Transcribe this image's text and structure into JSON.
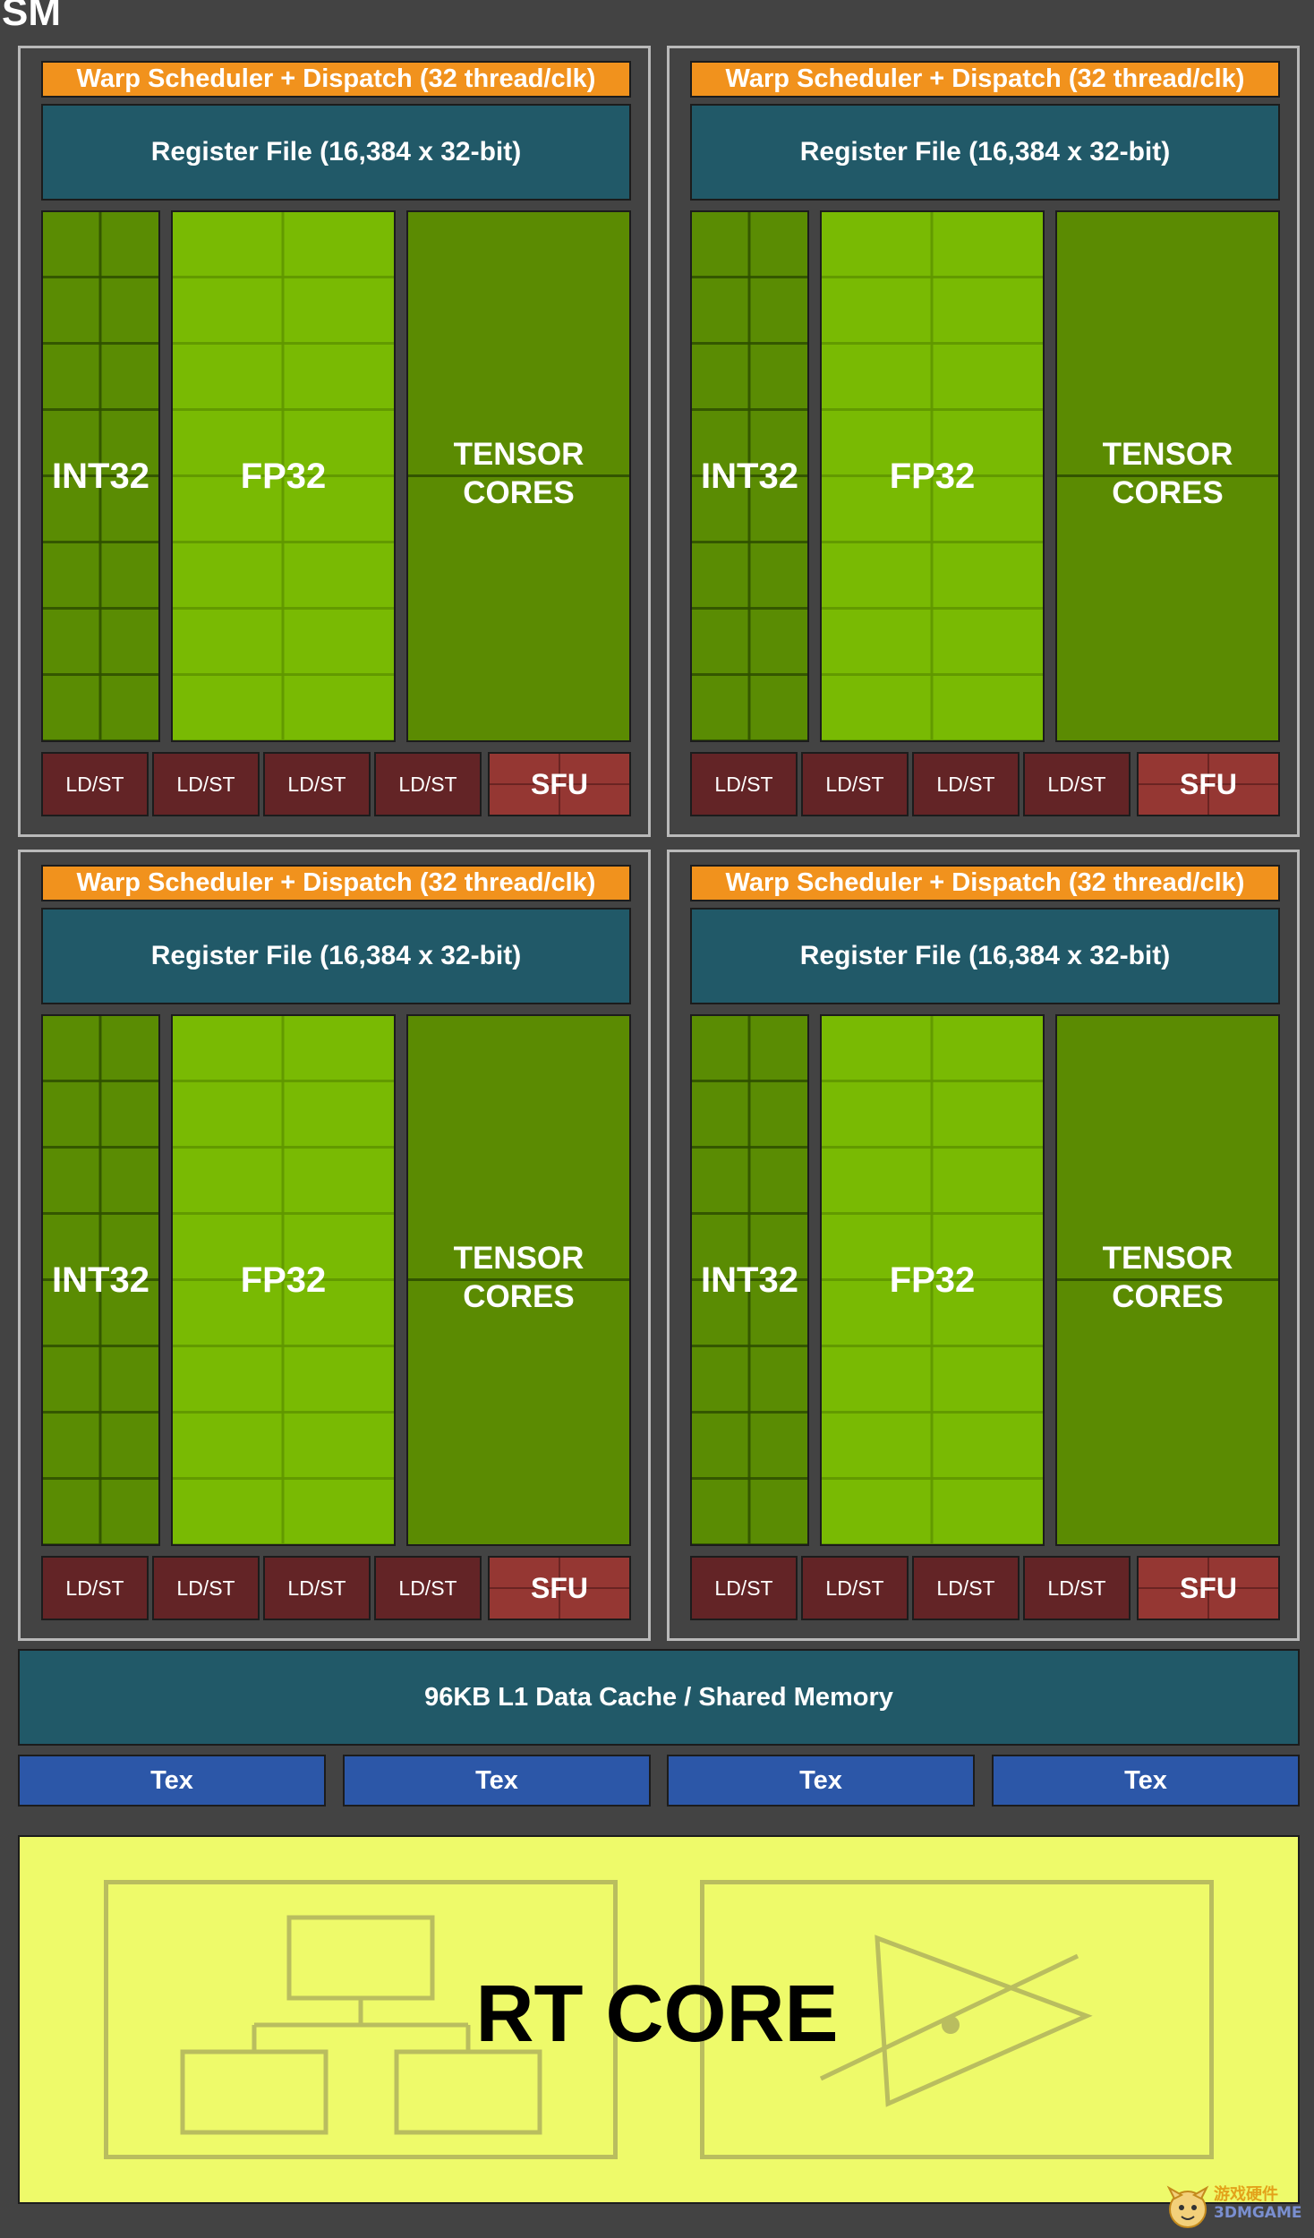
{
  "sm_title": "SM",
  "partitions": [
    {
      "warp": "Warp Scheduler + Dispatch (32 thread/clk)",
      "register_file": "Register File (16,384 x 32-bit)",
      "int32": "INT32",
      "fp32": "FP32",
      "tensor_line1": "TENSOR",
      "tensor_line2": "CORES",
      "ldst": [
        "LD/ST",
        "LD/ST",
        "LD/ST",
        "LD/ST"
      ],
      "sfu": "SFU"
    },
    {
      "warp": "Warp Scheduler + Dispatch (32 thread/clk)",
      "register_file": "Register File (16,384 x 32-bit)",
      "int32": "INT32",
      "fp32": "FP32",
      "tensor_line1": "TENSOR",
      "tensor_line2": "CORES",
      "ldst": [
        "LD/ST",
        "LD/ST",
        "LD/ST",
        "LD/ST"
      ],
      "sfu": "SFU"
    },
    {
      "warp": "Warp Scheduler + Dispatch (32 thread/clk)",
      "register_file": "Register File (16,384 x 32-bit)",
      "int32": "INT32",
      "fp32": "FP32",
      "tensor_line1": "TENSOR",
      "tensor_line2": "CORES",
      "ldst": [
        "LD/ST",
        "LD/ST",
        "LD/ST",
        "LD/ST"
      ],
      "sfu": "SFU"
    },
    {
      "warp": "Warp Scheduler + Dispatch (32 thread/clk)",
      "register_file": "Register File (16,384 x 32-bit)",
      "int32": "INT32",
      "fp32": "FP32",
      "tensor_line1": "TENSOR",
      "tensor_line2": "CORES",
      "ldst": [
        "LD/ST",
        "LD/ST",
        "LD/ST",
        "LD/ST"
      ],
      "sfu": "SFU"
    }
  ],
  "l1_cache": "96KB L1 Data Cache / Shared Memory",
  "tex_units": [
    "Tex",
    "Tex",
    "Tex",
    "Tex"
  ],
  "rt_core": "RT CORE",
  "watermark": {
    "line1": "游戏硬件",
    "line2": "3DMGAME"
  },
  "colors": {
    "background": "#434343",
    "warp": "#f1921d",
    "register_file": "#215968",
    "int32": "#5a8c03",
    "fp32": "#79ba03",
    "tensor": "#5b8b02",
    "ldst": "#632426",
    "sfu": "#953733",
    "tex": "#2c57a8",
    "rt_core": "#eefa6a"
  },
  "icons": [
    "bvh-tree-icon",
    "ray-triangle-intersection-icon"
  ]
}
